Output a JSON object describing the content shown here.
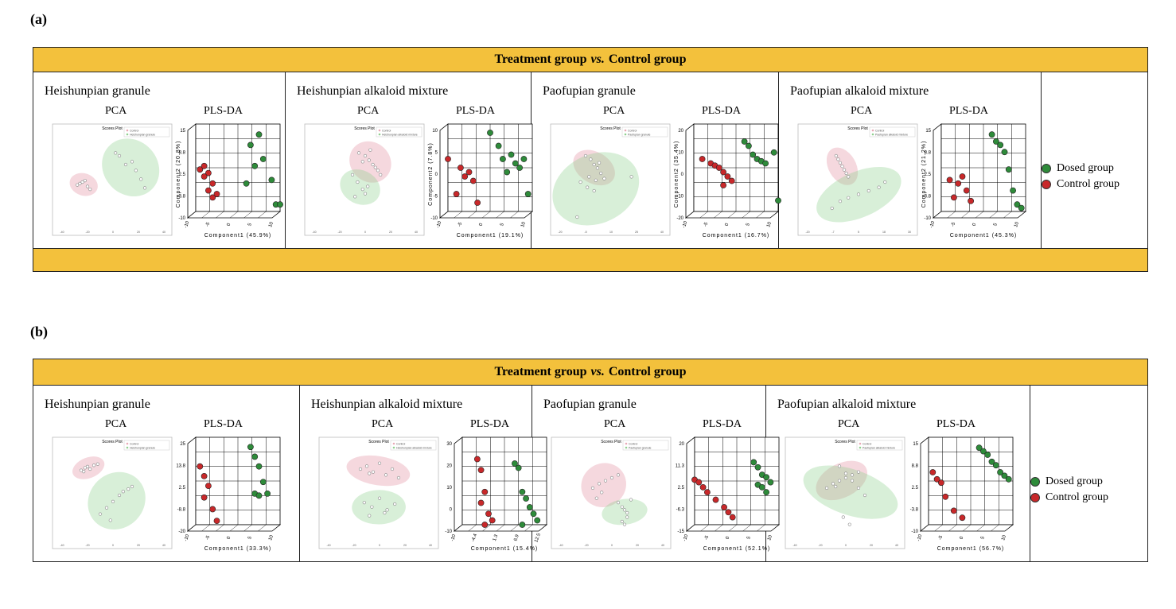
{
  "figure": {
    "panels": [
      {
        "label": "(a)",
        "header": {
          "prefix": "Treatment group",
          "vs": "vs.",
          "suffix": "Control group"
        },
        "legend": [
          {
            "name": "Dosed group",
            "color": "#2e8b3a"
          },
          {
            "name": "Control group",
            "color": "#c8282a"
          }
        ],
        "cells": [
          {
            "title": "Heishunpian granule",
            "pca_label": "PCA",
            "plsda_label": "PLS-DA",
            "pls_xlabel": "Component1 (45.9%)",
            "pls_ylabel": "Component2 (20.8%)"
          },
          {
            "title": "Heishunpian alkaloid mixture",
            "pca_label": "PCA",
            "plsda_label": "PLS-DA",
            "pls_xlabel": "Component1 (19.1%)",
            "pls_ylabel": "Component2 (7.8%)"
          },
          {
            "title": "Paofupian granule",
            "pca_label": "PCA",
            "plsda_label": "PLS-DA",
            "pls_xlabel": "Component1 (16.7%)",
            "pls_ylabel": "Component2 (35.4%)"
          },
          {
            "title": "Paofupian alkaloid mixture",
            "pca_label": "PCA",
            "plsda_label": "PLS-DA",
            "pls_xlabel": "Component1 (45.3%)",
            "pls_ylabel": "Component2 (21.2%)"
          }
        ]
      },
      {
        "label": "(b)",
        "header": {
          "prefix": "Treatment group",
          "vs": "vs.",
          "suffix": "Control group"
        },
        "legend": [
          {
            "name": "Dosed group",
            "color": "#2e8b3a"
          },
          {
            "name": "Control group",
            "color": "#c8282a"
          }
        ],
        "cells": [
          {
            "title": "Heishunpian granule",
            "pca_label": "PCA",
            "plsda_label": "PLS-DA",
            "pls_xlabel": "Component1 (33.3%)",
            "pls_ylabel": ""
          },
          {
            "title": "Heishunpian alkaloid mixture",
            "pca_label": "PCA",
            "plsda_label": "PLS-DA",
            "pls_xlabel": "Component1 (15.4%)",
            "pls_ylabel": ""
          },
          {
            "title": "Paofupian granule",
            "pca_label": "PCA",
            "plsda_label": "PLS-DA",
            "pls_xlabel": "Component1 (52.1%)",
            "pls_ylabel": ""
          },
          {
            "title": "Paofupian alkaloid mixture",
            "pca_label": "PCA",
            "plsda_label": "PLS-DA",
            "pls_xlabel": "Component1 (56.7%)",
            "pls_ylabel": ""
          }
        ]
      }
    ]
  },
  "chart_data": [
    {
      "type": "scatter",
      "panel": "a",
      "group": "Heishunpian granule",
      "method": "PCA",
      "title": "Scores Plot",
      "legend": [
        "Control",
        "Heishunpian granule"
      ],
      "series": [
        {
          "name": "Control",
          "color": "#e8a9b6",
          "x": [
            -28,
            -24,
            -22,
            -20,
            -18,
            -26
          ],
          "y": [
            -2,
            0,
            1,
            -3,
            -5,
            -1
          ]
        },
        {
          "name": "Heishunpian granule",
          "color": "#8fd08f",
          "x": [
            5,
            10,
            15,
            18,
            22,
            2,
            25
          ],
          "y": [
            18,
            12,
            14,
            8,
            2,
            20,
            -4
          ]
        }
      ],
      "xlim": [
        -40,
        40
      ],
      "ylim": [
        -30,
        30
      ]
    },
    {
      "type": "scatter",
      "panel": "a",
      "group": "Heishunpian granule",
      "method": "PLS-DA",
      "xlabel": "Component1 (45.9%)",
      "ylabel": "Component2 (20.8%)",
      "series": [
        {
          "name": "Dosed group",
          "color": "#2e8b3a",
          "x": [
            3,
            5,
            6,
            8,
            2,
            4,
            9,
            10
          ],
          "y": [
            9,
            12,
            5,
            -1,
            -2,
            3,
            -8,
            -8
          ]
        },
        {
          "name": "Control group",
          "color": "#c8282a",
          "x": [
            -9,
            -8,
            -7,
            -8,
            -6,
            -7,
            -5,
            -6
          ],
          "y": [
            2,
            3,
            1,
            0,
            -2,
            -4,
            -5,
            -6
          ]
        }
      ],
      "xlim": [
        -10,
        10
      ],
      "ylim": [
        -10,
        15
      ]
    },
    {
      "type": "scatter",
      "panel": "a",
      "group": "Heishunpian alkaloid mixture",
      "method": "PCA",
      "title": "Scores Plot",
      "legend": [
        "Control",
        "Heishunpian alkaloid mixture"
      ],
      "series": [
        {
          "name": "Control",
          "color": "#e8a9b6",
          "x": [
            -5,
            0,
            3,
            6,
            8,
            10,
            12,
            -2,
            4
          ],
          "y": [
            20,
            18,
            15,
            12,
            10,
            8,
            5,
            14,
            22
          ]
        },
        {
          "name": "Heishunpian alkaloid mixture",
          "color": "#8fd08f",
          "x": [
            -10,
            -6,
            -2,
            2,
            -8,
            0
          ],
          "y": [
            5,
            0,
            -5,
            -3,
            -10,
            -8
          ]
        }
      ],
      "xlim": [
        -40,
        40
      ],
      "ylim": [
        -30,
        30
      ]
    },
    {
      "type": "scatter",
      "panel": "a",
      "group": "Heishunpian alkaloid mixture",
      "method": "PLS-DA",
      "xlabel": "Component1 (19.1%)",
      "ylabel": "Component2 (7.8%)",
      "series": [
        {
          "name": "Dosed group",
          "color": "#2e8b3a",
          "x": [
            0,
            2,
            3,
            5,
            6,
            7,
            8,
            4,
            9
          ],
          "y": [
            8,
            5,
            2,
            3,
            1,
            0,
            2,
            -1,
            -6
          ]
        },
        {
          "name": "Control group",
          "color": "#c8282a",
          "x": [
            -10,
            -7,
            -5,
            -6,
            -4,
            -8,
            -3
          ],
          "y": [
            2,
            0,
            -1,
            -2,
            -3,
            -6,
            -8
          ]
        }
      ],
      "xlim": [
        -10,
        10
      ],
      "ylim": [
        -10,
        10
      ]
    },
    {
      "type": "scatter",
      "panel": "a",
      "group": "Paofupian granule",
      "method": "PCA",
      "title": "Scores Plot",
      "legend": [
        "Control",
        "Paofupian granule"
      ],
      "series": [
        {
          "name": "Control",
          "color": "#e8a9b6",
          "x": [
            -5,
            -2,
            0,
            2,
            4,
            -3,
            1,
            3
          ],
          "y": [
            10,
            8,
            5,
            3,
            0,
            -2,
            -4,
            6
          ]
        },
        {
          "name": "Paofupian granule",
          "color": "#8fd08f",
          "x": [
            -8,
            -4,
            0,
            6,
            22,
            -10
          ],
          "y": [
            -5,
            -8,
            -10,
            -3,
            -2,
            -25
          ]
        }
      ],
      "xlim": [
        -20,
        40
      ],
      "ylim": [
        -30,
        20
      ]
    },
    {
      "type": "scatter",
      "panel": "a",
      "group": "Paofupian granule",
      "method": "PLS-DA",
      "xlabel": "Component1 (16.7%)",
      "ylabel": "Component2 (35.4%)",
      "series": [
        {
          "name": "Dosed group",
          "color": "#2e8b3a",
          "x": [
            2,
            3,
            4,
            5,
            6,
            7,
            9,
            10
          ],
          "y": [
            12,
            10,
            6,
            4,
            3,
            2,
            7,
            -15
          ]
        },
        {
          "name": "Control group",
          "color": "#c8282a",
          "x": [
            -8,
            -6,
            -5,
            -4,
            -3,
            -2,
            -1,
            -3
          ],
          "y": [
            4,
            2,
            1,
            0,
            -2,
            -4,
            -6,
            -8
          ]
        }
      ],
      "xlim": [
        -10,
        10
      ],
      "ylim": [
        -20,
        20
      ]
    },
    {
      "type": "scatter",
      "panel": "a",
      "group": "Paofupian alkaloid mixture",
      "method": "PCA",
      "title": "Scores Plot",
      "legend": [
        "Control",
        "Paofupian alkaloid mixture"
      ],
      "series": [
        {
          "name": "Control",
          "color": "#e8a9b6",
          "x": [
            -6,
            -4,
            -2,
            0,
            -3,
            -1,
            -5
          ],
          "y": [
            20,
            16,
            12,
            8,
            14,
            10,
            18
          ]
        },
        {
          "name": "Paofupian alkaloid mixture",
          "color": "#8fd08f",
          "x": [
            -8,
            -4,
            0,
            5,
            10,
            15,
            18
          ],
          "y": [
            -10,
            -6,
            -4,
            -2,
            0,
            2,
            5
          ]
        }
      ],
      "xlim": [
        -20,
        30
      ],
      "ylim": [
        -20,
        30
      ]
    },
    {
      "type": "scatter",
      "panel": "a",
      "group": "Paofupian alkaloid mixture",
      "method": "PLS-DA",
      "xlabel": "Component1 (45.3%)",
      "ylabel": "Component2 (21.2%)",
      "series": [
        {
          "name": "Dosed group",
          "color": "#2e8b3a",
          "x": [
            2,
            3,
            4,
            5,
            6,
            7,
            8,
            9
          ],
          "y": [
            12,
            10,
            9,
            7,
            2,
            -4,
            -8,
            -9
          ]
        },
        {
          "name": "Control group",
          "color": "#c8282a",
          "x": [
            -8,
            -6,
            -5,
            -4,
            -7,
            -3
          ],
          "y": [
            -1,
            -2,
            0,
            -4,
            -6,
            -7
          ]
        }
      ],
      "xlim": [
        -10,
        10
      ],
      "ylim": [
        -10,
        15
      ]
    },
    {
      "type": "scatter",
      "panel": "b",
      "group": "Heishunpian granule",
      "method": "PCA",
      "title": "Scores Plot",
      "legend": [
        "Control",
        "Heishunpian granule"
      ],
      "series": [
        {
          "name": "Control",
          "color": "#e8a9b6",
          "x": [
            -25,
            -22,
            -20,
            -18,
            -15,
            -12,
            -23
          ],
          "y": [
            25,
            27,
            28,
            26,
            29,
            30,
            24
          ]
        },
        {
          "name": "Heishunpian granule",
          "color": "#8fd08f",
          "x": [
            -10,
            -5,
            0,
            5,
            8,
            12,
            15,
            -2
          ],
          "y": [
            -10,
            -5,
            0,
            5,
            8,
            10,
            12,
            -15
          ]
        }
      ],
      "xlim": [
        -40,
        40
      ],
      "ylim": [
        -30,
        40
      ]
    },
    {
      "type": "scatter",
      "panel": "b",
      "group": "Heishunpian granule",
      "method": "PLS-DA",
      "xlabel": "Component1 (33.3%)",
      "series": [
        {
          "name": "Dosed group",
          "color": "#2e8b3a",
          "x": [
            3,
            4,
            5,
            6,
            4,
            5,
            7
          ],
          "y": [
            20,
            15,
            10,
            2,
            -4,
            -5,
            -4
          ]
        },
        {
          "name": "Control group",
          "color": "#c8282a",
          "x": [
            -9,
            -8,
            -7,
            -8,
            -6,
            -5
          ],
          "y": [
            10,
            5,
            0,
            -6,
            -12,
            -18
          ]
        }
      ],
      "xlim": [
        -10,
        10
      ],
      "ylim": [
        -20,
        25
      ]
    },
    {
      "type": "scatter",
      "panel": "b",
      "group": "Heishunpian alkaloid mixture",
      "method": "PCA",
      "title": "Scores Plot",
      "legend": [
        "Control",
        "Heishunpian alkaloid mixture"
      ],
      "series": [
        {
          "name": "Control",
          "color": "#e8a9b6",
          "x": [
            -15,
            -10,
            -5,
            0,
            5,
            10,
            15,
            -8
          ],
          "y": [
            18,
            20,
            16,
            22,
            14,
            18,
            12,
            15
          ]
        },
        {
          "name": "Heishunpian alkaloid mixture",
          "color": "#8fd08f",
          "x": [
            -12,
            -6,
            0,
            6,
            12,
            -8,
            4
          ],
          "y": [
            -5,
            -8,
            -2,
            -10,
            -6,
            -14,
            -12
          ]
        }
      ],
      "xlim": [
        -40,
        40
      ],
      "ylim": [
        -30,
        30
      ]
    },
    {
      "type": "scatter",
      "panel": "b",
      "group": "Heishunpian alkaloid mixture",
      "method": "PLS-DA",
      "xlabel": "Component1 (15.4%)",
      "series": [
        {
          "name": "Dosed group",
          "color": "#2e8b3a",
          "x": [
            4,
            5,
            6,
            7,
            8,
            9,
            10,
            6
          ],
          "y": [
            18,
            16,
            5,
            2,
            -2,
            -5,
            -8,
            -10
          ]
        },
        {
          "name": "Control group",
          "color": "#c8282a",
          "x": [
            -6,
            -5,
            -4,
            -5,
            -3,
            -2,
            -4
          ],
          "y": [
            20,
            15,
            5,
            0,
            -5,
            -8,
            -10
          ]
        }
      ],
      "xlim": [
        -10,
        12.5
      ],
      "ylim": [
        -10,
        30
      ]
    },
    {
      "type": "scatter",
      "panel": "b",
      "group": "Paofupian granule",
      "method": "PCA",
      "title": "Scores Plot",
      "legend": [
        "Control",
        "Paofupian granule"
      ],
      "series": [
        {
          "name": "Control",
          "color": "#e8a9b6",
          "x": [
            -15,
            -10,
            -5,
            0,
            5,
            -8,
            -12
          ],
          "y": [
            5,
            8,
            10,
            12,
            14,
            2,
            -2
          ]
        },
        {
          "name": "Paofupian granule",
          "color": "#8fd08f",
          "x": [
            5,
            8,
            10,
            12,
            15,
            8,
            10,
            12
          ],
          "y": [
            -5,
            -8,
            -10,
            -12,
            -3,
            -18,
            -20,
            -15
          ]
        }
      ],
      "xlim": [
        -40,
        40
      ],
      "ylim": [
        -30,
        30
      ]
    },
    {
      "type": "scatter",
      "panel": "b",
      "group": "Paofupian granule",
      "method": "PLS-DA",
      "xlabel": "Component1 (52.1%)",
      "series": [
        {
          "name": "Dosed group",
          "color": "#2e8b3a",
          "x": [
            4,
            5,
            6,
            7,
            8,
            5,
            6,
            7
          ],
          "y": [
            10,
            8,
            5,
            4,
            2,
            1,
            0,
            -2
          ]
        },
        {
          "name": "Control group",
          "color": "#c8282a",
          "x": [
            -10,
            -9,
            -8,
            -7,
            -5,
            -3,
            -2,
            -1
          ],
          "y": [
            3,
            2,
            0,
            -2,
            -5,
            -8,
            -10,
            -12
          ]
        }
      ],
      "xlim": [
        -10,
        10
      ],
      "ylim": [
        -15,
        20
      ]
    },
    {
      "type": "scatter",
      "panel": "b",
      "group": "Paofupian alkaloid mixture",
      "method": "PCA",
      "title": "Scores Plot",
      "legend": [
        "Control",
        "Paofupian alkaloid mixture"
      ],
      "series": [
        {
          "name": "Control",
          "color": "#e8a9b6",
          "x": [
            -15,
            -10,
            -5,
            0,
            5,
            10,
            -8
          ],
          "y": [
            5,
            8,
            10,
            12,
            14,
            16,
            6
          ]
        },
        {
          "name": "Paofupian alkaloid mixture",
          "color": "#8fd08f",
          "x": [
            -5,
            0,
            5,
            10,
            15,
            -2,
            3
          ],
          "y": [
            20,
            15,
            10,
            5,
            0,
            -15,
            -20
          ]
        }
      ],
      "xlim": [
        -40,
        40
      ],
      "ylim": [
        -30,
        30
      ]
    },
    {
      "type": "scatter",
      "panel": "b",
      "group": "Paofupian alkaloid mixture",
      "method": "PLS-DA",
      "xlabel": "Component1 (56.7%)",
      "series": [
        {
          "name": "Dosed group",
          "color": "#2e8b3a",
          "x": [
            2,
            3,
            4,
            5,
            6,
            7,
            8,
            9
          ],
          "y": [
            12,
            11,
            10,
            8,
            7,
            5,
            4,
            3
          ]
        },
        {
          "name": "Control group",
          "color": "#c8282a",
          "x": [
            -9,
            -8,
            -7,
            -6,
            -4,
            -2
          ],
          "y": [
            5,
            3,
            2,
            -2,
            -6,
            -8
          ]
        }
      ],
      "xlim": [
        -10,
        10
      ],
      "ylim": [
        -10,
        15
      ]
    }
  ]
}
